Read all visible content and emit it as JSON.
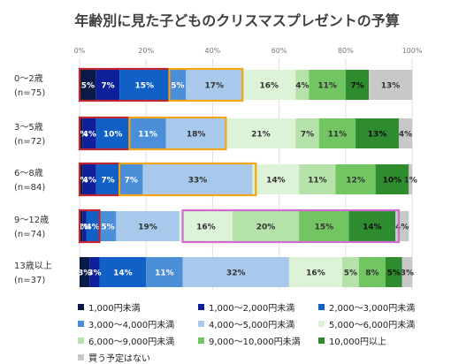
{
  "chart_data": {
    "type": "bar",
    "orientation": "horizontal",
    "stacked": true,
    "title": "年齢別に見た子どものクリスマスプレゼントの予算",
    "xlim": [
      0,
      100
    ],
    "x_ticks": [
      "0%",
      "20%",
      "40%",
      "60%",
      "80%",
      "100%"
    ],
    "grid": true,
    "legend_position": "bottom",
    "categories": [
      {
        "line1": "0〜2歳",
        "line2": "(n=75)"
      },
      {
        "line1": "3〜5歳",
        "line2": "(n=72)"
      },
      {
        "line1": "6〜8歳",
        "line2": "(n=84)"
      },
      {
        "line1": "9〜12歳",
        "line2": "(n=74)"
      },
      {
        "line1": "13歳以上",
        "line2": "(n=37)"
      }
    ],
    "series": [
      {
        "name": "1,000円未満",
        "color": "#0b1a45",
        "label_color": "#ffffff",
        "values": [
          5,
          1,
          1,
          1,
          3
        ],
        "labels": [
          "5%",
          "1%",
          "1%",
          "1%",
          "3%"
        ]
      },
      {
        "name": "1,000〜2,000円未満",
        "color": "#0d1f9a",
        "label_color": "#ffffff",
        "values": [
          7,
          4,
          4,
          1,
          3
        ],
        "labels": [
          "7%",
          "4%",
          "4%",
          "1%",
          "3%"
        ]
      },
      {
        "name": "2,000〜3,000円未満",
        "color": "#1060c8",
        "label_color": "#ffffff",
        "values": [
          15,
          10,
          7,
          4,
          14
        ],
        "labels": [
          "15%",
          "10%",
          "7%",
          "4%",
          "14%"
        ]
      },
      {
        "name": "3,000〜4,000円未満",
        "color": "#4a8fd8",
        "label_color": "#ffffff",
        "values": [
          5,
          11,
          7,
          5,
          11
        ],
        "labels": [
          "5%",
          "11%",
          "7%",
          "5%",
          "11%"
        ]
      },
      {
        "name": "4,000〜5,000円未満",
        "color": "#a9c9ec",
        "label_color": "#333333",
        "values": [
          17,
          18,
          33,
          19,
          32
        ],
        "labels": [
          "17%",
          "18%",
          "33%",
          "19%",
          "32%"
        ]
      },
      {
        "name": "5,000〜6,000円未満",
        "color": "#ddf3d8",
        "label_color": "#333333",
        "values": [
          16,
          21,
          14,
          16,
          16
        ],
        "labels": [
          "16%",
          "21%",
          "14%",
          "16%",
          "16%"
        ]
      },
      {
        "name": "6,000〜9,000円未満",
        "color": "#b4e2a8",
        "label_color": "#333333",
        "values": [
          4,
          7,
          11,
          20,
          5
        ],
        "labels": [
          "4%",
          "7%",
          "11%",
          "20%",
          "5%"
        ]
      },
      {
        "name": "9,000〜10,000円未満",
        "color": "#72c662",
        "label_color": "#333333",
        "values": [
          11,
          11,
          12,
          15,
          8
        ],
        "labels": [
          "11%",
          "11%",
          "12%",
          "15%",
          "8%"
        ]
      },
      {
        "name": "10,000円以上",
        "color": "#2e8b2e",
        "label_color": "#111111",
        "values": [
          7,
          13,
          10,
          14,
          5
        ],
        "labels": [
          "7%",
          "13%",
          "10%",
          "14%",
          "5%"
        ]
      },
      {
        "name": "買う予定はない",
        "color": "#c8c8c8",
        "label_color": "#333333",
        "values": [
          13,
          4,
          1,
          4,
          3
        ],
        "labels": [
          "13%",
          "4%",
          "1%",
          "4%",
          "3%"
        ]
      }
    ],
    "highlight_boxes": [
      {
        "row": 0,
        "from": 0,
        "to": 27,
        "color": "#c0262d"
      },
      {
        "row": 0,
        "from": 27,
        "to": 49,
        "color": "#f2a516"
      },
      {
        "row": 1,
        "from": 0,
        "to": 15,
        "color": "#c0262d"
      },
      {
        "row": 1,
        "from": 15,
        "to": 44,
        "color": "#f2a516"
      },
      {
        "row": 2,
        "from": 0,
        "to": 12,
        "color": "#c0262d"
      },
      {
        "row": 2,
        "from": 12,
        "to": 53,
        "color": "#f2a516"
      },
      {
        "row": 3,
        "from": 0,
        "to": 6,
        "color": "#c0262d"
      },
      {
        "row": 3,
        "from": 31,
        "to": 96,
        "color": "#d06ad0"
      }
    ]
  }
}
